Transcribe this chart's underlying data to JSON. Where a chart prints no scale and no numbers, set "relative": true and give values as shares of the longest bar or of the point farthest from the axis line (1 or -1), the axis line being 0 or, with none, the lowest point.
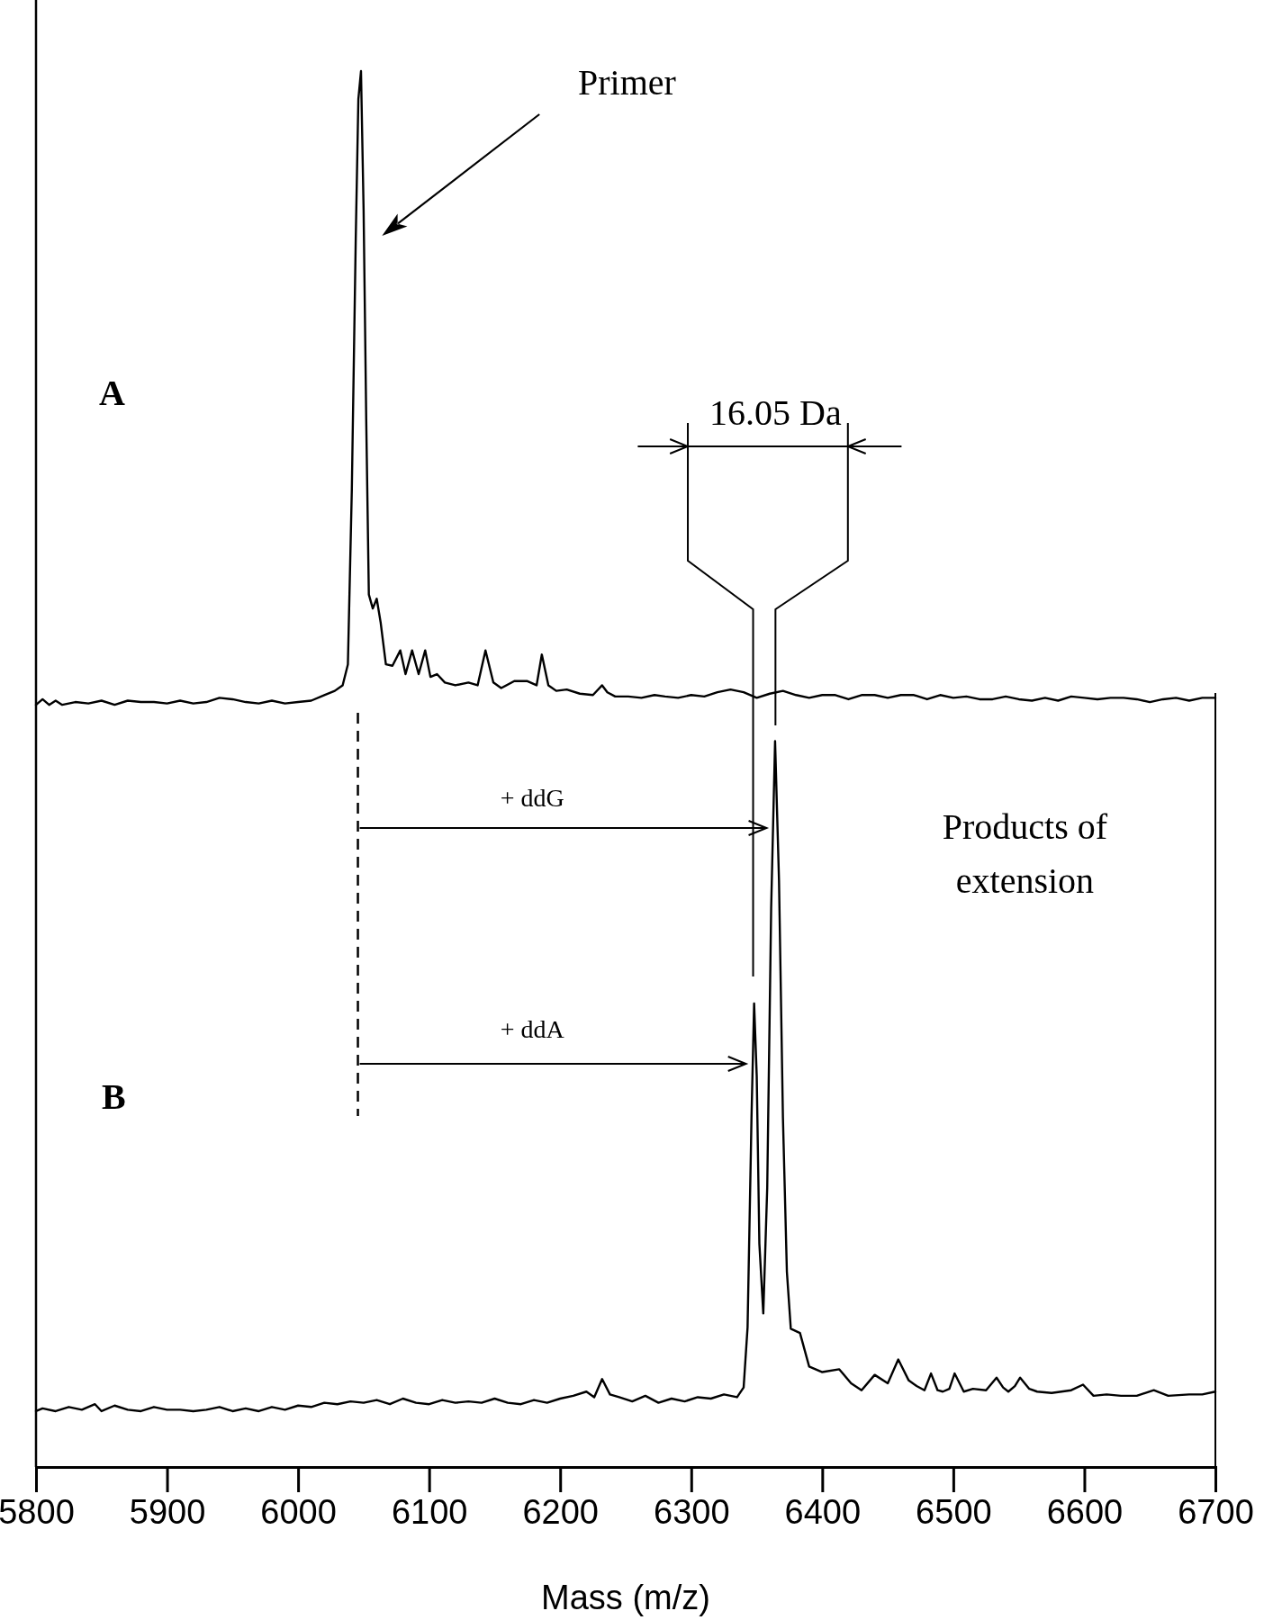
{
  "chart_data": {
    "type": "line",
    "relative": true,
    "xlabel": "Mass (m/z)",
    "xlim": [
      5800,
      6700
    ],
    "xticks": [
      5800,
      5900,
      6000,
      6100,
      6200,
      6300,
      6400,
      6500,
      6600,
      6700
    ],
    "grid": false,
    "legend": false,
    "marker": "none",
    "line_style": "solid",
    "annotations": [
      "Primer",
      "16.05 Da",
      "+ ddG",
      "+ ddA",
      "Products of extension",
      "A",
      "B"
    ],
    "series": [
      {
        "color": "#000000",
        "x": [
          5800,
          5805,
          5810,
          5815,
          5820,
          5830,
          5840,
          5850,
          5860,
          5870,
          5880,
          5890,
          5900,
          5910,
          5920,
          5930,
          5940,
          5950,
          5960,
          5970,
          5980,
          5990,
          6000,
          6010,
          6020,
          6028,
          6034,
          6038,
          6041,
          6044,
          6046,
          6048,
          6050,
          6052,
          6054,
          6057,
          6060,
          6063,
          6067,
          6072,
          6078,
          6082,
          6087,
          6092,
          6097,
          6101,
          6106,
          6112,
          6120,
          6130,
          6137,
          6143,
          6149,
          6155,
          6165,
          6175,
          6182,
          6186,
          6191,
          6197,
          6205,
          6215,
          6225,
          6232,
          6236,
          6242,
          6252,
          6262,
          6272,
          6280,
          6290,
          6300,
          6310,
          6320,
          6330,
          6340,
          6350,
          6360,
          6370,
          6380,
          6390,
          6400,
          6410,
          6420,
          6430,
          6440,
          6450,
          6460,
          6470,
          6480,
          6490,
          6500,
          6510,
          6520,
          6530,
          6540,
          6550,
          6560,
          6570,
          6580,
          6590,
          6600,
          6610,
          6620,
          6630,
          6640,
          6650,
          6660,
          6670,
          6680,
          6690,
          6700
        ],
        "values": [
          0.546,
          0.55,
          0.546,
          0.549,
          0.546,
          0.548,
          0.547,
          0.549,
          0.546,
          0.549,
          0.548,
          0.548,
          0.547,
          0.549,
          0.547,
          0.548,
          0.551,
          0.55,
          0.548,
          0.547,
          0.549,
          0.547,
          0.548,
          0.549,
          0.553,
          0.556,
          0.56,
          0.575,
          0.7,
          0.88,
          0.98,
          1.0,
          0.9,
          0.75,
          0.625,
          0.615,
          0.622,
          0.605,
          0.575,
          0.574,
          0.585,
          0.568,
          0.585,
          0.568,
          0.585,
          0.566,
          0.568,
          0.562,
          0.56,
          0.562,
          0.56,
          0.585,
          0.562,
          0.558,
          0.563,
          0.563,
          0.56,
          0.582,
          0.56,
          0.556,
          0.557,
          0.554,
          0.553,
          0.56,
          0.555,
          0.552,
          0.552,
          0.551,
          0.553,
          0.552,
          0.551,
          0.553,
          0.552,
          0.555,
          0.557,
          0.555,
          0.551,
          0.554,
          0.556,
          0.553,
          0.551,
          0.553,
          0.553,
          0.55,
          0.553,
          0.553,
          0.551,
          0.553,
          0.553,
          0.55,
          0.553,
          0.551,
          0.552,
          0.55,
          0.55,
          0.552,
          0.55,
          0.549,
          0.551,
          0.549,
          0.552,
          0.551,
          0.55,
          0.551,
          0.551,
          0.55,
          0.548,
          0.55,
          0.551,
          0.549,
          0.551,
          0.551
        ]
      },
      {
        "color": "#000000",
        "x": [
          5800,
          5805,
          5815,
          5825,
          5835,
          5845,
          5850,
          5860,
          5870,
          5880,
          5890,
          5900,
          5910,
          5920,
          5930,
          5940,
          5950,
          5960,
          5970,
          5980,
          5990,
          6000,
          6010,
          6020,
          6030,
          6040,
          6050,
          6060,
          6070,
          6080,
          6090,
          6100,
          6110,
          6120,
          6130,
          6140,
          6150,
          6160,
          6170,
          6180,
          6190,
          6200,
          6210,
          6220,
          6226,
          6232,
          6238,
          6245,
          6255,
          6265,
          6275,
          6285,
          6295,
          6305,
          6315,
          6325,
          6335,
          6340,
          6343,
          6346,
          6348,
          6350,
          6352,
          6355,
          6358,
          6361,
          6364,
          6367,
          6370,
          6373,
          6376,
          6383,
          6390,
          6400,
          6413,
          6422,
          6430,
          6440,
          6450,
          6458,
          6466,
          6472,
          6478,
          6483,
          6488,
          6492,
          6497,
          6501,
          6508,
          6515,
          6525,
          6533,
          6538,
          6542,
          6547,
          6551,
          6558,
          6564,
          6575,
          6590,
          6599,
          6607,
          6617,
          6628,
          6640,
          6653,
          6664,
          6680,
          6690,
          6700
        ],
        "values": [
          0.04,
          0.042,
          0.04,
          0.043,
          0.041,
          0.045,
          0.04,
          0.044,
          0.041,
          0.04,
          0.043,
          0.041,
          0.041,
          0.04,
          0.041,
          0.043,
          0.04,
          0.042,
          0.04,
          0.043,
          0.041,
          0.044,
          0.043,
          0.046,
          0.045,
          0.047,
          0.046,
          0.048,
          0.045,
          0.049,
          0.046,
          0.045,
          0.048,
          0.046,
          0.047,
          0.046,
          0.049,
          0.046,
          0.045,
          0.048,
          0.046,
          0.049,
          0.051,
          0.054,
          0.05,
          0.063,
          0.052,
          0.05,
          0.047,
          0.051,
          0.046,
          0.049,
          0.047,
          0.05,
          0.049,
          0.052,
          0.05,
          0.057,
          0.1,
          0.25,
          0.332,
          0.28,
          0.16,
          0.11,
          0.2,
          0.4,
          0.52,
          0.42,
          0.25,
          0.14,
          0.099,
          0.096,
          0.072,
          0.068,
          0.07,
          0.06,
          0.055,
          0.066,
          0.06,
          0.077,
          0.062,
          0.058,
          0.055,
          0.067,
          0.055,
          0.054,
          0.056,
          0.067,
          0.054,
          0.056,
          0.055,
          0.064,
          0.057,
          0.054,
          0.058,
          0.064,
          0.056,
          0.054,
          0.053,
          0.055,
          0.059,
          0.051,
          0.052,
          0.051,
          0.051,
          0.055,
          0.051,
          0.052,
          0.052,
          0.054
        ]
      }
    ]
  }
}
